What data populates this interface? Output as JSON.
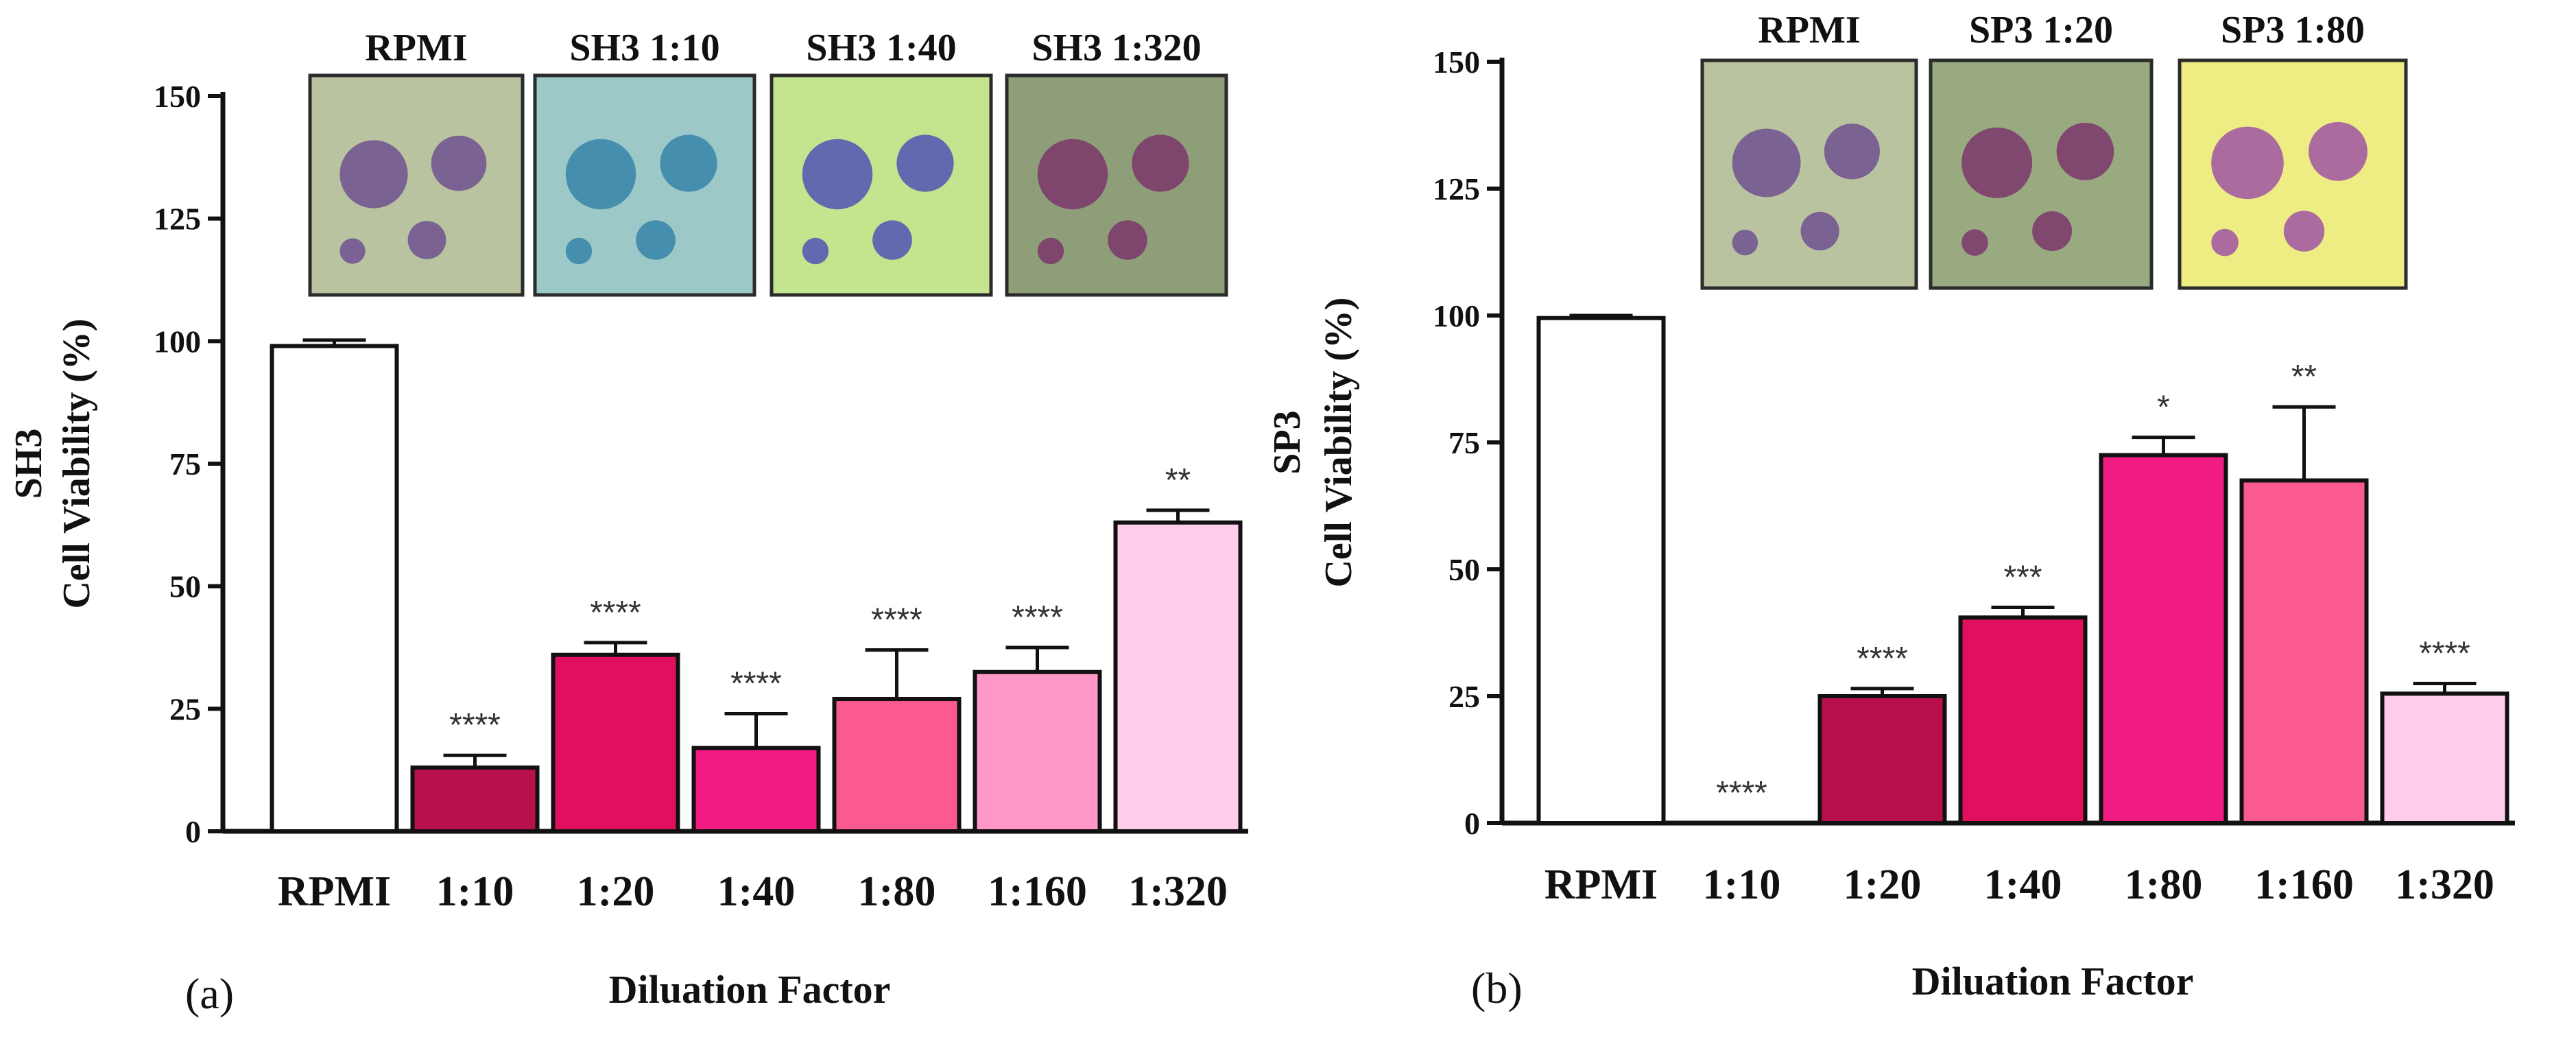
{
  "chart_data": [
    {
      "type": "bar",
      "panel_label": "(a)",
      "ylabel_line1": "SH3",
      "ylabel_line2": "Cell Viability (%)",
      "xlabel": "Diluation Factor",
      "ylim": [
        0,
        150
      ],
      "yticks": [
        "0",
        "25",
        "50",
        "75",
        "100",
        "125",
        "150"
      ],
      "categories": [
        "RPMI",
        "1:10",
        "1:20",
        "1:40",
        "1:80",
        "1:160",
        "1:320"
      ],
      "values": [
        99,
        13,
        36,
        17,
        27,
        32.5,
        63
      ],
      "errors": [
        1.2,
        2.5,
        2.5,
        7,
        10,
        5,
        2.5
      ],
      "significance": [
        "",
        "****",
        "****",
        "****",
        "****",
        "****",
        "**"
      ],
      "colors": [
        "#ffffff",
        "#b8104c",
        "#e0105e",
        "#f01c82",
        "#fa5a8e",
        "#ff98c8",
        "#ffcdec"
      ],
      "micrographs": [
        {
          "label": "RPMI",
          "bg": "#b9c3a0",
          "cells": "#6a4a90"
        },
        {
          "label": "SH3 1:10",
          "bg": "#9cc8c8",
          "cells": "#2f7fa6"
        },
        {
          "label": "SH3 1:40",
          "bg": "#c4e48e",
          "cells": "#4a4ab8"
        },
        {
          "label": "SH3 1:320",
          "bg": "#8e9e78",
          "cells": "#7a2f6a"
        }
      ]
    },
    {
      "type": "bar",
      "panel_label": "(b)",
      "ylabel_line1": "SP3",
      "ylabel_line2": "Cell Viability (%)",
      "xlabel": "Diluation Factor",
      "ylim": [
        0,
        150
      ],
      "yticks": [
        "0",
        "25",
        "50",
        "75",
        "100",
        "125",
        "150"
      ],
      "categories": [
        "RPMI",
        "1:10",
        "1:20",
        "1:40",
        "1:80",
        "1:160",
        "1:320"
      ],
      "values": [
        99.5,
        0,
        25,
        40.5,
        72.5,
        67.5,
        25.5
      ],
      "errors": [
        0.5,
        0,
        1.5,
        2,
        3.5,
        14.5,
        2
      ],
      "significance": [
        "",
        "****",
        "****",
        "***",
        "*",
        "**",
        "****"
      ],
      "colors": [
        "#ffffff",
        "#ffffff",
        "#b8104c",
        "#e0105e",
        "#f01c82",
        "#fa5a8e",
        "#ffcdec"
      ],
      "micrographs": [
        {
          "label": "RPMI",
          "bg": "#b9c3a0",
          "cells": "#6a4a90"
        },
        {
          "label": "SP3 1:20",
          "bg": "#9aaa80",
          "cells": "#7a2f6a"
        },
        {
          "label": "SP3 1:80",
          "bg": "#eded84",
          "cells": "#9a4aa6"
        }
      ]
    }
  ]
}
